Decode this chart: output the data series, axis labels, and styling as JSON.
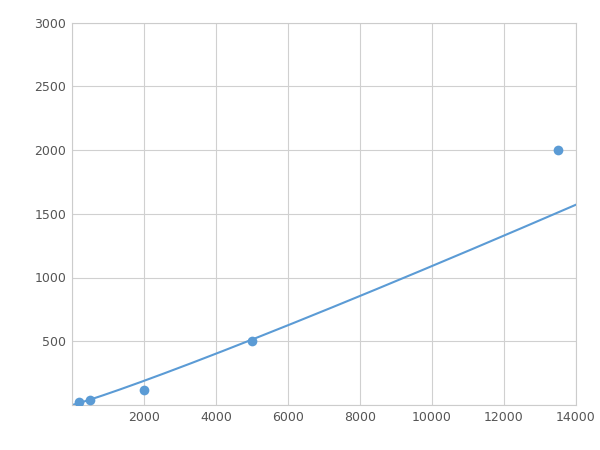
{
  "x_points": [
    200,
    500,
    2000,
    5000,
    13500
  ],
  "y_points": [
    20,
    40,
    120,
    500,
    2000
  ],
  "line_color": "#5b9bd5",
  "marker_color": "#5b9bd5",
  "marker_size": 7,
  "marker_style": "o",
  "line_width": 1.5,
  "xlim": [
    0,
    14000
  ],
  "ylim": [
    0,
    3000
  ],
  "xticks": [
    0,
    2000,
    4000,
    6000,
    8000,
    10000,
    12000,
    14000
  ],
  "yticks": [
    0,
    500,
    1000,
    1500,
    2000,
    2500,
    3000
  ],
  "xtick_labels": [
    "",
    "2000",
    "4000",
    "6000",
    "8000",
    "10000",
    "12000",
    "14000"
  ],
  "ytick_labels": [
    "",
    "500",
    "1000",
    "1500",
    "2000",
    "2500",
    "3000"
  ],
  "grid": true,
  "grid_color": "#d0d0d0",
  "background_color": "#ffffff",
  "figure_bg": "#ffffff",
  "spine_color": "#cccccc"
}
